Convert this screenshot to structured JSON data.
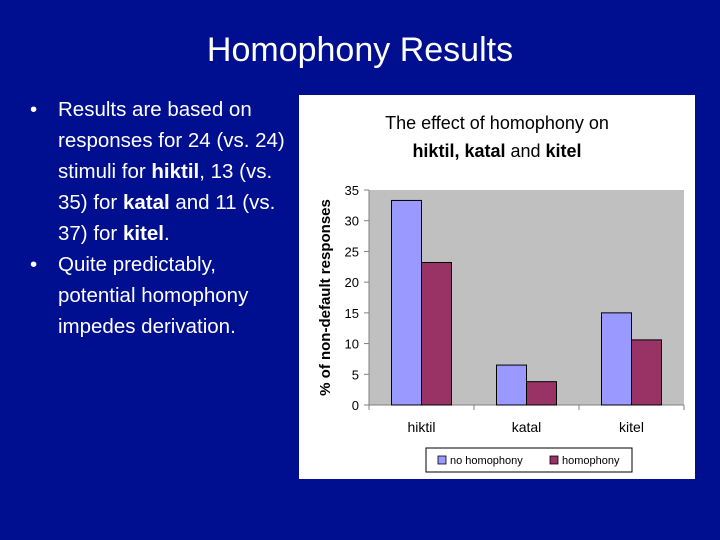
{
  "slide": {
    "title": "Homophony Results",
    "bullet_char": "•",
    "bullets": [
      {
        "parts": [
          {
            "text": "Results are based on responses for 24 (vs. 24) stimuli for ",
            "bold": false
          },
          {
            "text": "hiktil",
            "bold": true
          },
          {
            "text": ", 13 (vs. 35) for ",
            "bold": false
          },
          {
            "text": "katal",
            "bold": true
          },
          {
            "text": " and 11 (vs. 37) for ",
            "bold": false
          },
          {
            "text": "kitel",
            "bold": true
          },
          {
            "text": ".",
            "bold": false
          }
        ]
      },
      {
        "parts": [
          {
            "text": "Quite predictably, potential homophony impedes derivation.",
            "bold": false
          }
        ]
      }
    ]
  },
  "chart_data": {
    "type": "bar",
    "title_line1": "The effect of homophony on",
    "title_line2": [
      {
        "text": "hiktil, katal",
        "bold": true
      },
      {
        "text": " and ",
        "bold": false
      },
      {
        "text": "kitel",
        "bold": true
      }
    ],
    "xlabel": "",
    "ylabel": "% of non-default responses",
    "categories": [
      "hiktil",
      "katal",
      "kitel"
    ],
    "series": [
      {
        "name": "no homophony",
        "values": [
          33.3,
          6.5,
          15.0
        ],
        "color": "#9999ff"
      },
      {
        "name": "homophony",
        "values": [
          23.2,
          3.8,
          10.6
        ],
        "color": "#993366"
      }
    ],
    "ylim": [
      0,
      35
    ],
    "yticks": [
      0,
      5,
      10,
      15,
      20,
      25,
      30,
      35
    ],
    "grid": false,
    "legend_position": "bottom",
    "colors": {
      "plot_area": "#c0c0c0",
      "axis": "#808080"
    }
  }
}
